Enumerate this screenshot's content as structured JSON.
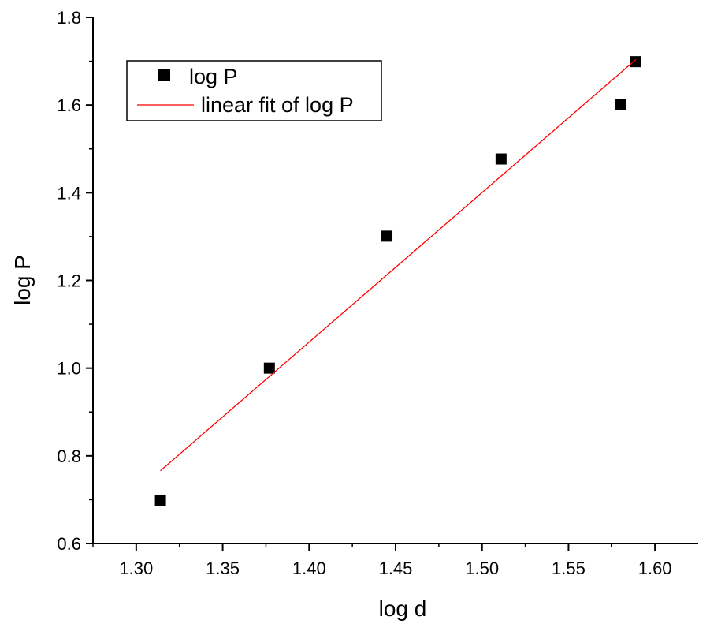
{
  "chart_data": {
    "type": "scatter",
    "title": "",
    "xlabel": "log d",
    "ylabel": "log P",
    "xlim": [
      1.275,
      1.625
    ],
    "ylim": [
      0.6,
      1.8
    ],
    "xticks": [
      "1.30",
      "1.35",
      "1.40",
      "1.45",
      "1.50",
      "1.55",
      "1.60"
    ],
    "yticks": [
      "0.6",
      "0.8",
      "1.0",
      "1.2",
      "1.4",
      "1.6",
      "1.8"
    ],
    "grid": false,
    "legend_position": "top-left",
    "series": [
      {
        "name": "log P",
        "kind": "scatter",
        "marker": "square",
        "color": "#000000",
        "x": [
          1.314,
          1.377,
          1.445,
          1.511,
          1.58,
          1.589
        ],
        "y": [
          0.699,
          1.0,
          1.301,
          1.477,
          1.602,
          1.699
        ]
      },
      {
        "name": "linear fit of log P",
        "kind": "line",
        "color": "#ff0000",
        "x": [
          1.314,
          1.589
        ],
        "y": [
          0.766,
          1.704
        ]
      }
    ]
  }
}
